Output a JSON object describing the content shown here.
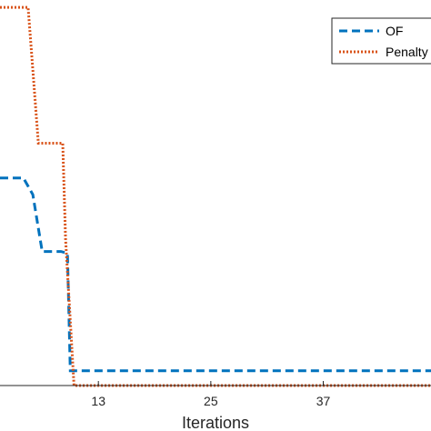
{
  "chart_data": {
    "type": "line",
    "xlabel": "Iterations",
    "ylabel": "",
    "title": "",
    "x_ticks": [
      13,
      25,
      37
    ],
    "x_tick_labels": [
      "13",
      "25",
      "37"
    ],
    "xlim": [
      2.5,
      48.5
    ],
    "ylim": [
      0,
      1.05
    ],
    "grid": false,
    "legend_position": "top-right",
    "series": [
      {
        "name": "OF",
        "color": "#0072BD",
        "style": "dashed",
        "x": [
          2.5,
          5,
          6,
          7,
          9,
          9.7,
          10,
          48.5
        ],
        "y": [
          0.565,
          0.565,
          0.52,
          0.365,
          0.365,
          0.36,
          0.04,
          0.04
        ]
      },
      {
        "name": "Penalty",
        "color": "#D95319",
        "style": "dotted",
        "x": [
          2.5,
          5.5,
          6.6,
          9.2,
          9.5,
          10.4,
          48.5
        ],
        "y": [
          1.03,
          1.03,
          0.66,
          0.66,
          0.4,
          0.0,
          0.0
        ]
      }
    ]
  }
}
